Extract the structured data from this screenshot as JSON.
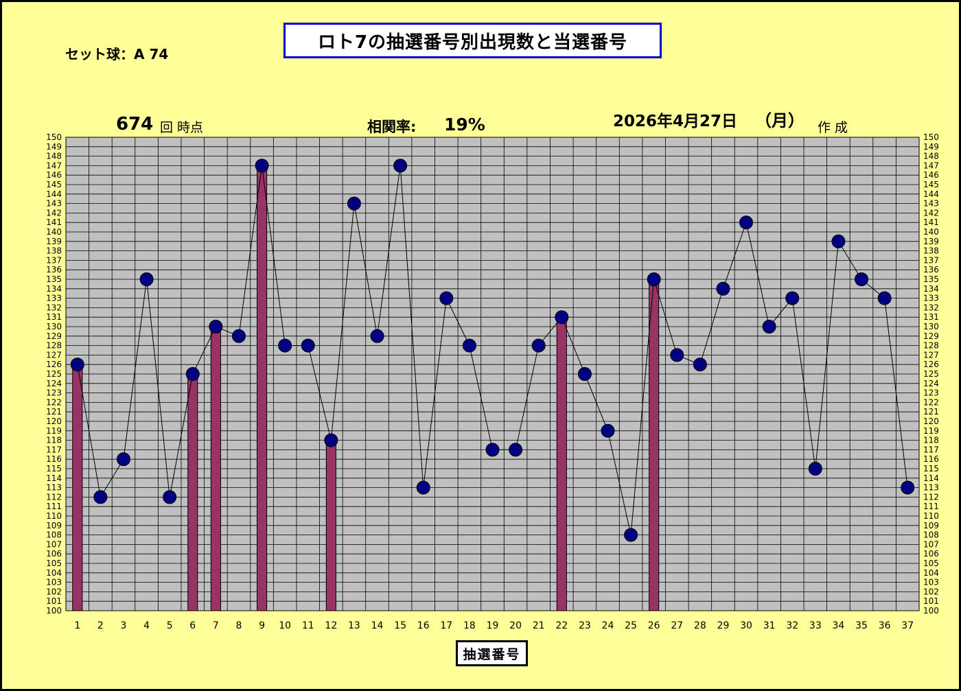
{
  "header": {
    "title": "ロト7の抽選番号別出現数と当選番号",
    "set_ball": "セット球：A 74",
    "draw_count": "674",
    "draw_unit": "回 時点",
    "correlation_label": "相関率:",
    "correlation_value": "19%",
    "date": "2026年4月27日",
    "weekday": "（月）",
    "created_label": "作 成"
  },
  "colors": {
    "background": "#FFFF99",
    "plot_area": "#C0C0C0",
    "bar": "#993366",
    "marker": "#000080",
    "title_border": "#0000CC"
  },
  "chart_data": {
    "type": "bar",
    "xlabel": "抽選番号",
    "categories": [
      "1",
      "2",
      "3",
      "4",
      "5",
      "6",
      "7",
      "8",
      "9",
      "10",
      "11",
      "12",
      "13",
      "14",
      "15",
      "16",
      "17",
      "18",
      "19",
      "20",
      "21",
      "22",
      "23",
      "24",
      "25",
      "26",
      "27",
      "28",
      "29",
      "30",
      "31",
      "32",
      "33",
      "34",
      "35",
      "36",
      "37"
    ],
    "ylim": [
      100,
      150
    ],
    "y_ticks_step": 1,
    "grid": true,
    "series": [
      {
        "type": "line",
        "values": [
          126,
          112,
          116,
          135,
          112,
          125,
          130,
          129,
          147,
          128,
          128,
          118,
          143,
          129,
          147,
          113,
          133,
          128,
          117,
          117,
          128,
          131,
          125,
          119,
          108,
          135,
          127,
          126,
          134,
          141,
          130,
          133,
          115,
          139,
          135,
          133,
          113
        ]
      },
      {
        "type": "bar",
        "values": [
          126,
          null,
          null,
          null,
          null,
          125,
          130,
          null,
          147,
          null,
          null,
          118,
          null,
          null,
          null,
          null,
          null,
          null,
          null,
          null,
          null,
          131,
          null,
          null,
          null,
          135,
          null,
          null,
          null,
          null,
          null,
          null,
          null,
          null,
          null,
          null,
          null
        ]
      }
    ]
  }
}
